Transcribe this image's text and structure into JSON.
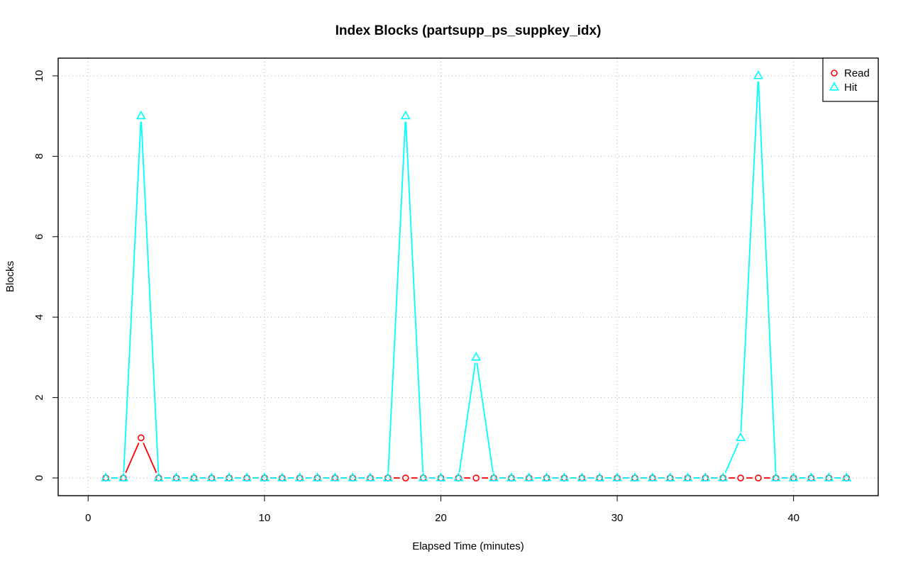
{
  "chart_data": {
    "type": "line",
    "title": "Index Blocks (partsupp_ps_suppkey_idx)",
    "xlabel": "Elapsed Time (minutes)",
    "ylabel": "Blocks",
    "xlim": [
      -1.7,
      44.8
    ],
    "ylim": [
      -0.44,
      10.44
    ],
    "xticks": [
      0,
      10,
      20,
      30,
      40
    ],
    "yticks": [
      0,
      2,
      4,
      6,
      8,
      10
    ],
    "grid": true,
    "legend_position": "top-right",
    "x": [
      1,
      2,
      3,
      4,
      5,
      6,
      7,
      8,
      9,
      10,
      11,
      12,
      13,
      14,
      15,
      16,
      17,
      18,
      19,
      20,
      21,
      22,
      23,
      24,
      25,
      26,
      27,
      28,
      29,
      30,
      31,
      32,
      33,
      34,
      35,
      36,
      37,
      38,
      39,
      40,
      41,
      42,
      43
    ],
    "series": [
      {
        "name": "Read",
        "color": "#ff0000",
        "marker": "circle",
        "values": [
          0,
          0,
          1,
          0,
          0,
          0,
          0,
          0,
          0,
          0,
          0,
          0,
          0,
          0,
          0,
          0,
          0,
          0,
          0,
          0,
          0,
          0,
          0,
          0,
          0,
          0,
          0,
          0,
          0,
          0,
          0,
          0,
          0,
          0,
          0,
          0,
          0,
          0,
          0,
          0,
          0,
          0,
          0
        ]
      },
      {
        "name": "Hit",
        "color": "#00ffff",
        "marker": "triangle",
        "values": [
          0,
          0,
          9,
          0,
          0,
          0,
          0,
          0,
          0,
          0,
          0,
          0,
          0,
          0,
          0,
          0,
          0,
          9,
          0,
          0,
          0,
          3,
          0,
          0,
          0,
          0,
          0,
          0,
          0,
          0,
          0,
          0,
          0,
          0,
          0,
          0,
          1,
          10,
          0,
          0,
          0,
          0,
          0
        ]
      }
    ]
  }
}
